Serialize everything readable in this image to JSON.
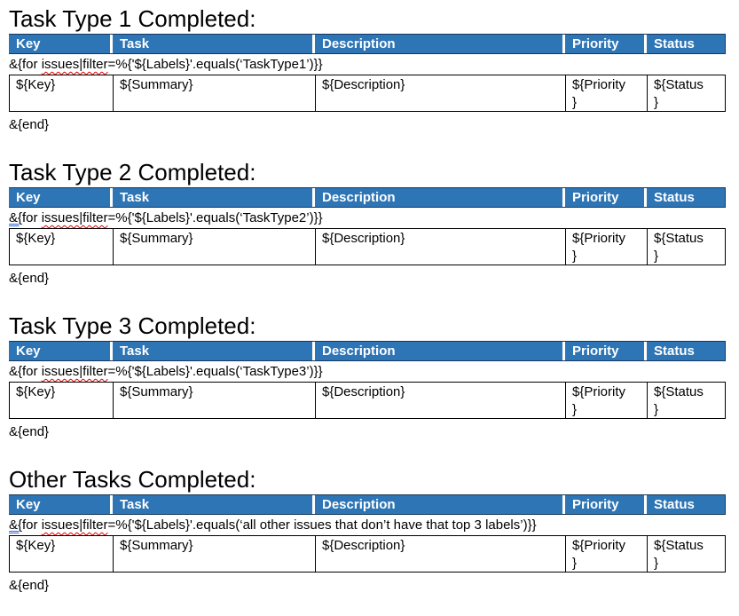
{
  "colors": {
    "header_bg": "#2E75B6",
    "header_border": "#17375E",
    "header_text": "#FFFFFF",
    "spellcheck_squiggle": "#E00000",
    "grammar_underline": "#2E62D9"
  },
  "table": {
    "columns": [
      "Key",
      "Task",
      "Description",
      "Priority",
      "Status"
    ]
  },
  "row": {
    "key": "${Key}",
    "task": "${Summary}",
    "description": "${Description}",
    "priority": "${Priority\n}",
    "status": "${Status\n}"
  },
  "end_marker": "&{end}",
  "sections": [
    {
      "heading": "Task Type 1 Completed:",
      "filter_amp": "&{",
      "filter_for": "for ",
      "filter_word": "issues|filter",
      "filter_rest": "=%{'${Labels}'.equals(‘TaskType1’)}}"
    },
    {
      "heading": "Task Type 2 Completed:",
      "filter_amp": "&{",
      "filter_for": "for ",
      "filter_word": "issues|filter",
      "filter_rest": "=%{'${Labels}'.equals(‘TaskType2’)}}"
    },
    {
      "heading": "Task Type 3 Completed:",
      "filter_amp": "&{",
      "filter_for": "for ",
      "filter_word": "issues|filter",
      "filter_rest": "=%{'${Labels}'.equals(‘TaskType3’)}}"
    },
    {
      "heading": "Other Tasks Completed:",
      "filter_amp": "&{",
      "filter_for": "for ",
      "filter_word": "issues|filter",
      "filter_rest": "=%{'${Labels}'.equals(‘all other issues that don’t have that top 3 labels’)}}"
    }
  ]
}
